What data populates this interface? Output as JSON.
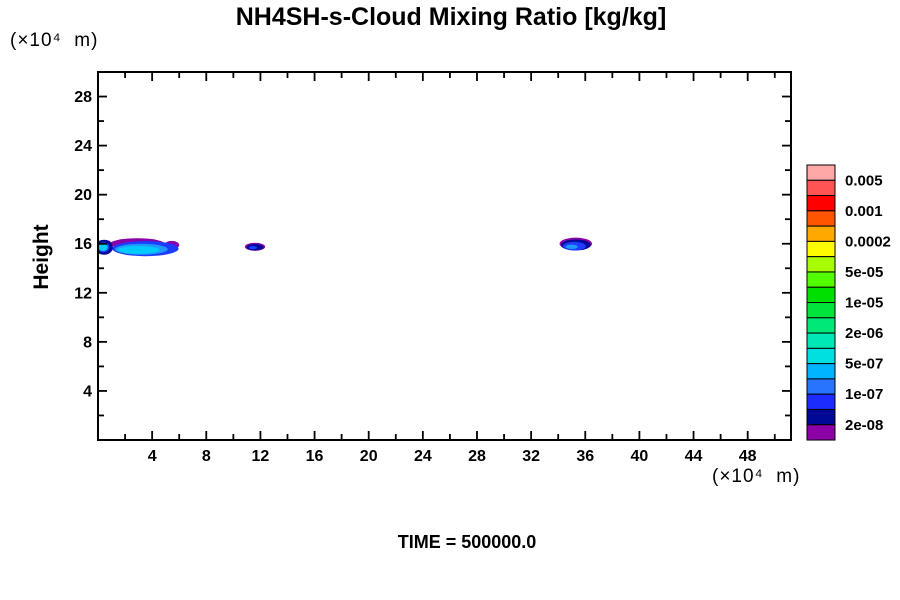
{
  "chart_data": {
    "type": "heatmap",
    "subtype": "filled-contour-cloud-plot",
    "title": "NH4SH-s-Cloud Mixing Ratio [kg/kg]",
    "ylabel": "Height",
    "y_unit_label": "(×10⁴  m)",
    "x_unit_label": "(×10⁴  m)",
    "time_label": "TIME = 500000.0",
    "xlim": [
      0,
      51.2
    ],
    "ylim": [
      0,
      30
    ],
    "x_major_ticks": [
      4,
      8,
      12,
      16,
      20,
      24,
      28,
      32,
      36,
      40,
      44,
      48
    ],
    "y_major_ticks": [
      4,
      8,
      12,
      16,
      20,
      24,
      28
    ],
    "x_minor_step": 2,
    "y_minor_step": 2,
    "grid": false,
    "legend_position": "right",
    "colorbar": {
      "labels": [
        "0.005",
        "0.001",
        "0.0002",
        "5e-05",
        "1e-05",
        "2e-06",
        "5e-07",
        "1e-07",
        "2e-08"
      ],
      "colors_top_to_bottom": [
        "#FFA8A8",
        "#FF5454",
        "#FF0000",
        "#FF5400",
        "#FFA800",
        "#FFFC00",
        "#A8FC00",
        "#54FC00",
        "#00E000",
        "#00E43C",
        "#00E878",
        "#00E8B4",
        "#00E0E0",
        "#00B4FF",
        "#2874FF",
        "#1C2CFF",
        "#000896",
        "#8C00A8"
      ]
    },
    "clouds": [
      {
        "name": "left-cloud-at-axis",
        "approx_x_range": [
          0,
          5.9
        ],
        "approx_height": 15.7,
        "layers": [
          {
            "cx": 2.9,
            "cy": 16.0,
            "rx": 2.0,
            "ry": 0.45,
            "color": "#8C00A8"
          },
          {
            "cx": 5.45,
            "cy": 15.9,
            "rx": 0.55,
            "ry": 0.33,
            "color": "#8C00A8"
          },
          {
            "cx": 3.5,
            "cy": 15.6,
            "rx": 2.45,
            "ry": 0.62,
            "color": "#1C3CFF"
          },
          {
            "cx": 3.2,
            "cy": 15.55,
            "rx": 1.95,
            "ry": 0.45,
            "color": "#2098FF"
          },
          {
            "cx": 3.0,
            "cy": 15.5,
            "rx": 1.55,
            "ry": 0.32,
            "color": "#00CCFF"
          },
          {
            "cx": 0.45,
            "cy": 16.1,
            "rx": 0.5,
            "ry": 0.22,
            "color": "#8C00A8"
          },
          {
            "cx": 0.45,
            "cy": 15.7,
            "rx": 0.65,
            "ry": 0.6,
            "color": "#000896"
          },
          {
            "cx": 0.4,
            "cy": 15.72,
            "rx": 0.45,
            "ry": 0.42,
            "color": "#1C3CFF"
          },
          {
            "cx": 0.38,
            "cy": 15.7,
            "rx": 0.34,
            "ry": 0.3,
            "color": "#00CCFF"
          }
        ]
      },
      {
        "name": "small-center-cloud",
        "approx_x_range": [
          10.9,
          12.3
        ],
        "approx_height": 15.7,
        "layers": [
          {
            "cx": 11.6,
            "cy": 15.75,
            "rx": 0.75,
            "ry": 0.33,
            "color": "#8C00A8"
          },
          {
            "cx": 11.6,
            "cy": 15.72,
            "rx": 0.62,
            "ry": 0.26,
            "color": "#000896"
          },
          {
            "cx": 11.45,
            "cy": 15.68,
            "rx": 0.3,
            "ry": 0.14,
            "color": "#1C3CFF"
          }
        ]
      },
      {
        "name": "right-cloud",
        "approx_x_range": [
          34.1,
          36.5
        ],
        "approx_height": 15.9,
        "layers": [
          {
            "cx": 35.3,
            "cy": 16.0,
            "rx": 1.2,
            "ry": 0.5,
            "color": "#8C00A8"
          },
          {
            "cx": 35.3,
            "cy": 15.9,
            "rx": 1.1,
            "ry": 0.45,
            "color": "#000896"
          },
          {
            "cx": 35.2,
            "cy": 15.8,
            "rx": 0.85,
            "ry": 0.35,
            "color": "#1C3CFF"
          },
          {
            "cx": 35.0,
            "cy": 15.75,
            "rx": 0.45,
            "ry": 0.18,
            "color": "#2098FF"
          }
        ]
      }
    ]
  }
}
